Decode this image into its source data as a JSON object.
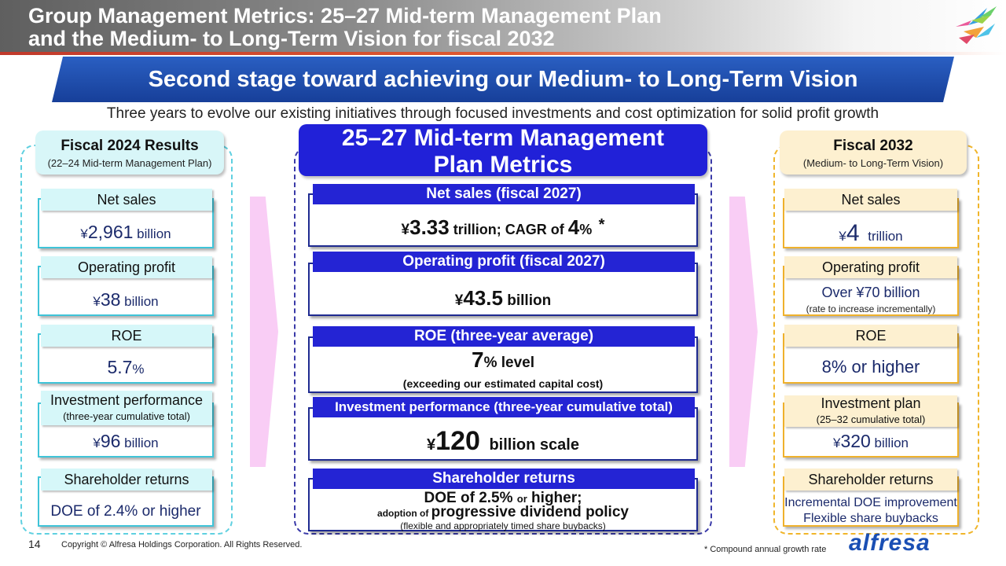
{
  "header": {
    "title_line1": "Group Management Metrics: 25–27 Mid-term Management Plan",
    "title_line2": "and the Medium- to Long-Term Vision for fiscal 2032"
  },
  "banner": "Second stage toward achieving our Medium- to Long-Term Vision",
  "subtitle": "Three years to evolve our existing initiatives through focused investments and cost optimization for solid profit growth",
  "left": {
    "title": "Fiscal 2024 Results",
    "subtitle": "(22–24 Mid-term Management Plan)",
    "net_sales": {
      "label": "Net sales",
      "yen": "¥",
      "value": "2,961",
      "unit": " billion"
    },
    "operating_profit": {
      "label": "Operating profit",
      "yen": "¥",
      "value": "38",
      "unit": " billion"
    },
    "roe": {
      "label": "ROE",
      "value": "5.7",
      "unit": "%"
    },
    "investment": {
      "label": "Investment performance",
      "sublabel": "(three-year cumulative total)",
      "yen": "¥",
      "value": "96",
      "unit": " billion"
    },
    "shareholder": {
      "label": "Shareholder returns",
      "value": "DOE of 2.4% or higher"
    }
  },
  "middle": {
    "title_line1": "25–27 Mid-term Management",
    "title_line2": "Plan Metrics",
    "net_sales": {
      "label": "Net sales (fiscal 2027)",
      "yen": "¥",
      "value": "3.33",
      "unit": " trillion; CAGR of ",
      "cagr": "4",
      "pct": "%",
      "note_mark": "*"
    },
    "operating_profit": {
      "label": "Operating profit (fiscal 2027)",
      "yen": "¥",
      "value": "43.5",
      "unit": " billion"
    },
    "roe": {
      "label": "ROE (three-year average)",
      "value": "7",
      "unit": "% level",
      "note": "(exceeding our estimated capital cost)"
    },
    "investment": {
      "label": "Investment performance (three-year cumulative total)",
      "yen": "¥",
      "value": "120",
      "unit": " billion scale"
    },
    "shareholder": {
      "label": "Shareholder returns",
      "line1a": "DOE of 2.5% ",
      "line1b": "or",
      "line1c": " higher;",
      "line2a": "adoption of ",
      "line2b": "progressive dividend policy",
      "line3": "(flexible and appropriately timed share buybacks)"
    }
  },
  "right": {
    "title": "Fiscal 2032",
    "subtitle": "(Medium- to Long-Term Vision)",
    "net_sales": {
      "label": "Net sales",
      "yen": "¥",
      "value": "4",
      "unit": " trillion"
    },
    "operating_profit": {
      "label": "Operating profit",
      "value": "Over ¥70 billion",
      "note": "(rate to increase incrementally)"
    },
    "roe": {
      "label": "ROE",
      "value": "8% or higher"
    },
    "investment": {
      "label": "Investment plan",
      "sublabel": "(25–32 cumulative total)",
      "yen": "¥",
      "value": "320",
      "unit": " billion"
    },
    "shareholder": {
      "label": "Shareholder returns",
      "line1": "Incremental DOE improvement",
      "line2": "Flexible share buybacks"
    }
  },
  "footer": {
    "page": "14",
    "copyright": "Copyright © Alfresa Holdings Corporation. All Rights Reserved.",
    "footnote": "* Compound annual growth rate",
    "brand": "alfresa"
  },
  "colors": {
    "navy": "#173f99",
    "blue": "#2424d4",
    "cyan": "#3fc4d8",
    "gold": "#efb12c",
    "pink": "#f9cdf5"
  }
}
